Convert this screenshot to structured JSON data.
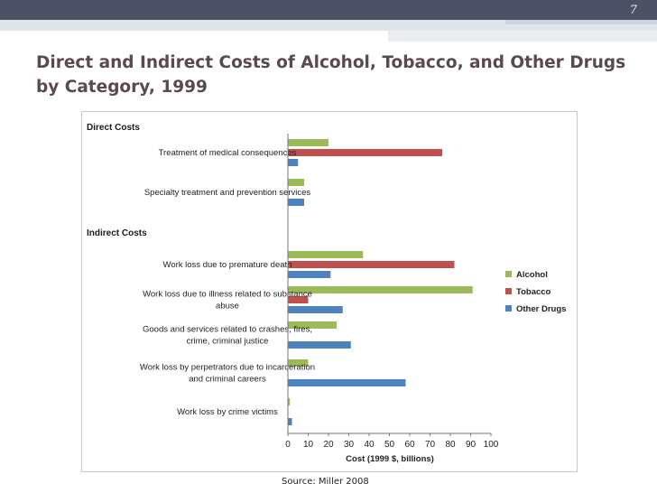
{
  "slide": {
    "number": "7",
    "title": "Direct and Indirect Costs of Alcohol, Tobacco, and Other Drugs by Category, 1999",
    "source": "Source: Miller 2008"
  },
  "colors": {
    "Alcohol": "#9bbb59",
    "Tobacco": "#c0504d",
    "Other Drugs": "#4f81bd"
  },
  "chart_data": {
    "type": "bar",
    "orientation": "horizontal",
    "groups": [
      {
        "label": "Direct Costs",
        "categories": [
          "Treatment of medical consequences",
          "Specialty treatment and prevention services"
        ]
      },
      {
        "label": "Indirect Costs",
        "categories": [
          "Work loss due to premature death",
          "Work loss due to illness related to substance abuse",
          "Goods and services related to crashes, fires, crime, criminal justice",
          "Work loss by perpetrators due to incarceration and criminal careers",
          "Work loss by crime victims"
        ]
      }
    ],
    "categories": [
      "Treatment of medical consequences",
      "Specialty treatment and prevention services",
      "Work loss due to premature death",
      "Work loss due to illness related to substance abuse",
      "Goods and services related to crashes, fires, crime, criminal justice",
      "Work loss by perpetrators due to incarceration and criminal careers",
      "Work loss by crime victims"
    ],
    "category_lines": [
      [
        "Treatment of medical consequences"
      ],
      [
        "Specialty treatment and prevention services"
      ],
      [
        "Work loss due to premature death"
      ],
      [
        "Work loss due to illness related to substance",
        "abuse"
      ],
      [
        "Goods and services related to crashes, fires,",
        "crime, criminal justice"
      ],
      [
        "Work loss by perpetrators due to incarceration",
        "and criminal careers"
      ],
      [
        "Work loss by crime victims"
      ]
    ],
    "series": [
      {
        "name": "Alcohol",
        "values": [
          20,
          8,
          37,
          91,
          24,
          10,
          1
        ]
      },
      {
        "name": "Tobacco",
        "values": [
          76,
          0,
          82,
          10,
          0,
          0,
          0
        ]
      },
      {
        "name": "Other Drugs",
        "values": [
          5,
          8,
          21,
          27,
          31,
          58,
          2
        ]
      }
    ],
    "xlabel": "Cost (1999 $, billions)",
    "xlim": [
      0,
      100
    ],
    "xticks": [
      0,
      10,
      20,
      30,
      40,
      50,
      60,
      70,
      80,
      90,
      100
    ],
    "legend_position": "right",
    "grid": false
  }
}
